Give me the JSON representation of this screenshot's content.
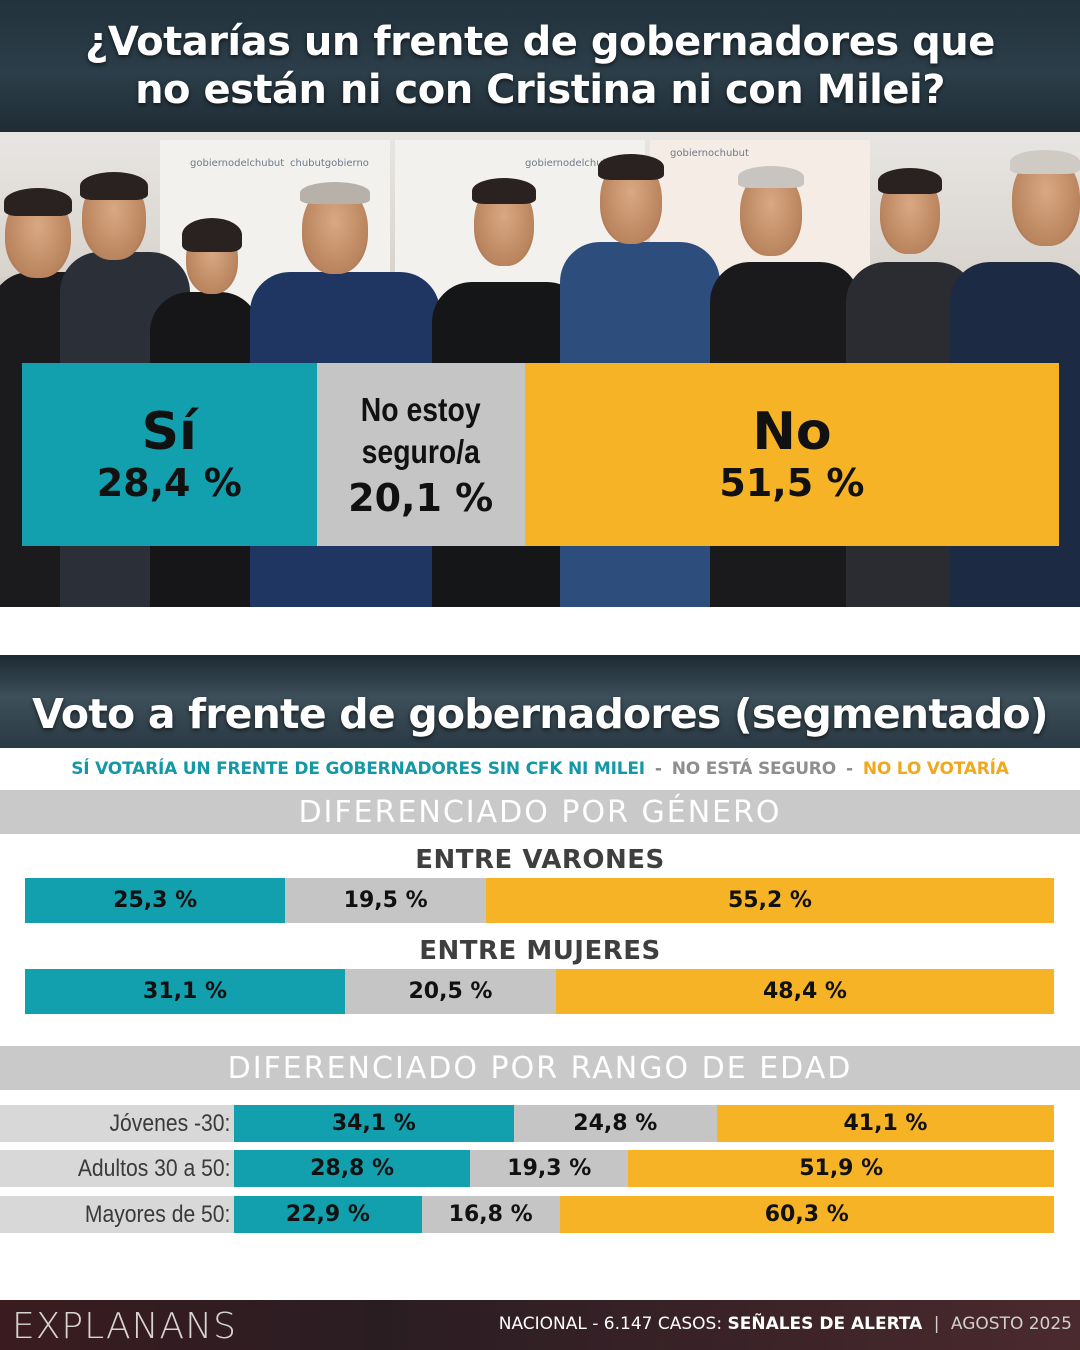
{
  "colors": {
    "si": "#13a0ae",
    "ns": "#c5c5c5",
    "no": "#f7b326"
  },
  "top": {
    "title_line1": "¿Votarías un frente de gobernadores que",
    "title_line2": "no están ni con Cristina ni con Milei?"
  },
  "photo_banner_texts": [
    "gobiernodelchubut",
    "chubutgobierno",
    "gobiernodelchubut",
    "gobiernochubut"
  ],
  "main_result": {
    "si_label": "Sí",
    "si_value": "28,4 %",
    "ns_label_line1": "No estoy",
    "ns_label_line2": "seguro/a",
    "ns_value": "20,1 %",
    "no_label": "No",
    "no_value": "51,5 %"
  },
  "segmented": {
    "title": "Voto a frente de gobernadores (segmentado)",
    "legend_si": "SÍ VOTARÍA UN FRENTE DE GOBERNADORES SIN CFK NI MILEI",
    "legend_ns": "NO ESTÁ SEGURO",
    "legend_no": "NO LO VOTARÍA",
    "legend_sep": "-",
    "gender_band": "DIFERENCIADO POR GÉNERO",
    "male_title": "ENTRE VARONES",
    "male_si": "25,3 %",
    "male_ns": "19,5 %",
    "male_no": "55,2 %",
    "female_title": "ENTRE MUJERES",
    "female_si": "31,1 %",
    "female_ns": "20,5 %",
    "female_no": "48,4 %",
    "age_band": "DIFERENCIADO POR RANGO DE EDAD",
    "age_rows": [
      {
        "label": "Jóvenes -30:",
        "si": "34,1 %",
        "ns": "24,8 %",
        "no": "41,1 %"
      },
      {
        "label": "Adultos 30 a 50:",
        "si": "28,8 %",
        "ns": "19,3 %",
        "no": "51,9 %"
      },
      {
        "label": "Mayores de 50:",
        "si": "22,9 %",
        "ns": "16,8 %",
        "no": "60,3 %"
      }
    ]
  },
  "footer": {
    "brand": "EXPLANANS",
    "part1": "NACIONAL - 6.147 CASOS:",
    "part2": "SEÑALES DE ALERTA",
    "divider": "|",
    "part3": "AGOSTO 2025"
  },
  "chart_data": [
    {
      "type": "bar",
      "orientation": "stacked-horizontal",
      "title": "¿Votarías un frente de gobernadores que no están ni con Cristina ni con Milei?",
      "categories": [
        "Sí",
        "No estoy seguro/a",
        "No"
      ],
      "values": [
        28.4,
        20.1,
        51.5
      ]
    },
    {
      "type": "bar",
      "orientation": "stacked-horizontal",
      "title": "Voto a frente de gobernadores (segmentado)",
      "subtitle": "DIFERENCIADO POR GÉNERO",
      "categories": [
        "ENTRE VARONES",
        "ENTRE MUJERES"
      ],
      "series": [
        {
          "name": "SÍ VOTARÍA UN FRENTE DE GOBERNADORES SIN CFK NI MILEI",
          "values": [
            25.3,
            31.1
          ]
        },
        {
          "name": "NO ESTÁ SEGURO",
          "values": [
            19.5,
            20.5
          ]
        },
        {
          "name": "NO LO VOTARÍA",
          "values": [
            55.2,
            48.4
          ]
        }
      ]
    },
    {
      "type": "bar",
      "orientation": "stacked-horizontal",
      "subtitle": "DIFERENCIADO POR RANGO DE EDAD",
      "categories": [
        "Jóvenes -30:",
        "Adultos 30 a 50:",
        "Mayores de 50:"
      ],
      "series": [
        {
          "name": "SÍ VOTARÍA UN FRENTE DE GOBERNADORES SIN CFK NI MILEI",
          "values": [
            34.1,
            28.8,
            22.9
          ]
        },
        {
          "name": "NO ESTÁ SEGURO",
          "values": [
            24.8,
            19.3,
            16.8
          ]
        },
        {
          "name": "NO LO VOTARÍA",
          "values": [
            41.1,
            51.9,
            60.3
          ]
        }
      ]
    }
  ]
}
